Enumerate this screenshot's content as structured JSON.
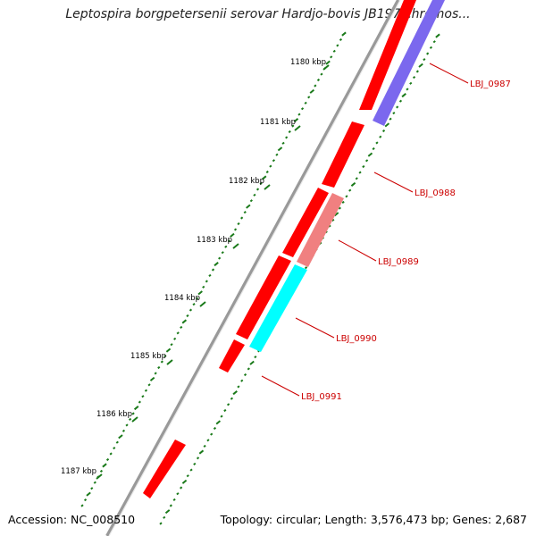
{
  "title": "Leptospira borgpetersenii serovar Hardjo-bovis JB197 chromos...",
  "footer": {
    "accession": "Accession: NC_008510",
    "summary": "Topology: circular; Length: 3,576,473 bp; Genes: 2,687"
  },
  "ticks": [
    "1180 kbp",
    "1181 kbp",
    "1182 kbp",
    "1183 kbp",
    "1184 kbp",
    "1185 kbp",
    "1186 kbp",
    "1187 kbp"
  ],
  "gene_labels": [
    "LBJ_0987",
    "LBJ_0988",
    "LBJ_0989",
    "LBJ_0990",
    "LBJ_0991"
  ],
  "colors": {
    "gene": "#ff0000",
    "pseudo": "#f08080",
    "cyan": "#00ffff",
    "purple": "#7b68ee",
    "tick": "#1a7a1a",
    "label_red": "#cc0000",
    "backbone": "#888888"
  }
}
